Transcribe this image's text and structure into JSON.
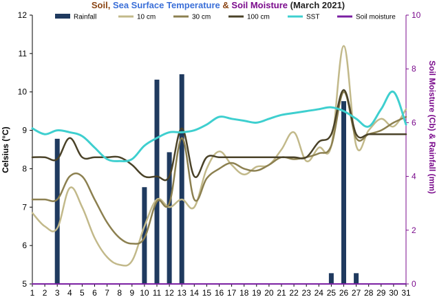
{
  "chart_data": {
    "type": "bar+line",
    "title_parts": [
      {
        "text": "Soil",
        "color": "#8B4513"
      },
      {
        "text": ", ",
        "color": "#8B4513"
      },
      {
        "text": "Sea Surface Temperature",
        "color": "#3a6fd8"
      },
      {
        "text": " & ",
        "color": "#8B4513"
      },
      {
        "text": "Soil Moisture",
        "color": "#7a0a8c"
      },
      {
        "text": " (March 2021)",
        "color": "#222222"
      }
    ],
    "ylabel_left": "Celsius (°C)",
    "ylabel_right": "Soil Moisture (Cb) & Rainfall (mm)",
    "ylim_left": [
      5,
      12
    ],
    "ylim_right": [
      0,
      10
    ],
    "yticks_left": [
      5,
      6,
      7,
      8,
      9,
      10,
      11,
      12
    ],
    "yticks_right": [
      0,
      2,
      4,
      6,
      8,
      10
    ],
    "categories": [
      "1",
      "2",
      "3",
      "4",
      "5",
      "6",
      "7",
      "8",
      "9",
      "10",
      "11",
      "12",
      "13",
      "14",
      "15",
      "16",
      "17",
      "18",
      "19",
      "20",
      "21",
      "22",
      "23",
      "24",
      "25",
      "26",
      "27",
      "28",
      "29",
      "30",
      "31"
    ],
    "legend": [
      {
        "name": "Rainfall",
        "kind": "bar",
        "color": "#1f3a5f"
      },
      {
        "name": "10 cm",
        "kind": "line",
        "color": "#c2b98a"
      },
      {
        "name": "30 cm",
        "kind": "line",
        "color": "#8c8050"
      },
      {
        "name": "100 cm",
        "kind": "line",
        "color": "#4a4228"
      },
      {
        "name": "SST",
        "kind": "line",
        "color": "#3ecfcf"
      },
      {
        "name": "Soil moisture",
        "kind": "line",
        "color": "#7a1fa2"
      }
    ],
    "series": [
      {
        "name": "Rainfall",
        "axis": "right",
        "type": "bar",
        "color": "#1f3a5f",
        "values": [
          0,
          0,
          5.4,
          0,
          0,
          0,
          0,
          0,
          0,
          3.6,
          7.6,
          4.9,
          7.8,
          0,
          0,
          0,
          0,
          0,
          0,
          0,
          0,
          0,
          0,
          0,
          0.4,
          6.8,
          0.4,
          0,
          0,
          0,
          0
        ]
      },
      {
        "name": "10 cm",
        "axis": "left",
        "type": "line",
        "color": "#c2b98a",
        "values": [
          6.85,
          6.5,
          6.45,
          7.5,
          7.0,
          6.2,
          5.7,
          5.5,
          5.6,
          6.5,
          7.2,
          7.0,
          7.2,
          7.0,
          8.0,
          8.45,
          8.1,
          7.85,
          8.05,
          8.1,
          8.5,
          8.95,
          8.2,
          8.55,
          8.6,
          11.2,
          8.6,
          9.0,
          9.3,
          9.1,
          9.55
        ]
      },
      {
        "name": "30 cm",
        "axis": "left",
        "type": "line",
        "color": "#8c8050",
        "values": [
          7.2,
          7.2,
          7.2,
          7.8,
          7.8,
          7.2,
          6.6,
          6.2,
          6.05,
          6.2,
          7.15,
          7.1,
          8.8,
          7.2,
          7.75,
          8.0,
          8.15,
          8.0,
          7.95,
          8.1,
          8.3,
          8.25,
          8.3,
          8.4,
          8.6,
          10.0,
          8.8,
          8.9,
          9.0,
          9.2,
          9.35
        ]
      },
      {
        "name": "100 cm",
        "axis": "left",
        "type": "line",
        "color": "#4a4228",
        "values": [
          8.3,
          8.3,
          8.25,
          8.8,
          8.3,
          8.3,
          8.3,
          8.3,
          8.1,
          7.8,
          7.8,
          7.8,
          9.05,
          7.8,
          8.3,
          8.3,
          8.3,
          8.3,
          8.3,
          8.3,
          8.3,
          8.3,
          8.3,
          8.7,
          8.9,
          10.05,
          8.9,
          8.9,
          8.9,
          8.9,
          8.9
        ]
      },
      {
        "name": "SST",
        "axis": "left",
        "type": "line",
        "color": "#3ecfcf",
        "values": [
          9.05,
          8.9,
          9.0,
          8.95,
          8.85,
          8.55,
          8.25,
          8.2,
          8.25,
          8.6,
          8.8,
          8.95,
          8.95,
          9.0,
          9.15,
          9.35,
          9.3,
          9.25,
          9.2,
          9.3,
          9.4,
          9.45,
          9.5,
          9.55,
          9.6,
          9.5,
          9.3,
          9.1,
          9.55,
          10.0,
          9.15
        ]
      },
      {
        "name": "Soil moisture",
        "axis": "right",
        "type": "line",
        "color": "#7a1fa2",
        "values": [
          0,
          0,
          0,
          0,
          0,
          0,
          0,
          0,
          0,
          0,
          0,
          0,
          0,
          0,
          0,
          0,
          0,
          0,
          0,
          0,
          0,
          0,
          0,
          0,
          0,
          0,
          0,
          0,
          0,
          0,
          0
        ]
      }
    ]
  }
}
